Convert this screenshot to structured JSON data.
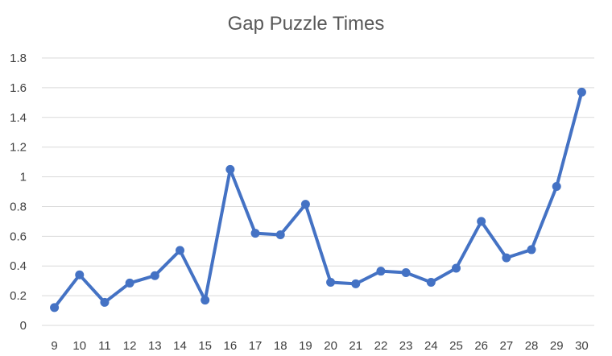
{
  "chart_data": {
    "type": "line",
    "title": "Gap Puzzle Times",
    "xlabel": "",
    "ylabel": "",
    "x": [
      9,
      10,
      11,
      12,
      13,
      14,
      15,
      16,
      17,
      18,
      19,
      20,
      21,
      22,
      23,
      24,
      25,
      26,
      27,
      28,
      29,
      30
    ],
    "series": [
      {
        "values": [
          0.12,
          0.34,
          0.155,
          0.285,
          0.335,
          0.505,
          0.17,
          1.05,
          0.62,
          0.61,
          0.815,
          0.29,
          0.28,
          0.365,
          0.355,
          0.29,
          0.385,
          0.7,
          0.455,
          0.51,
          0.935,
          1.57
        ],
        "color": "#4472C4"
      }
    ],
    "ylim": [
      0,
      1.8
    ],
    "yticks": [
      0,
      0.2,
      0.4,
      0.6,
      0.8,
      1,
      1.2,
      1.4,
      1.6,
      1.8
    ],
    "ytick_labels": [
      "0",
      "0.2",
      "0.4",
      "0.6",
      "0.8",
      "1",
      "1.2",
      "1.4",
      "1.6",
      "1.8"
    ],
    "grid": true,
    "legend": "none"
  }
}
